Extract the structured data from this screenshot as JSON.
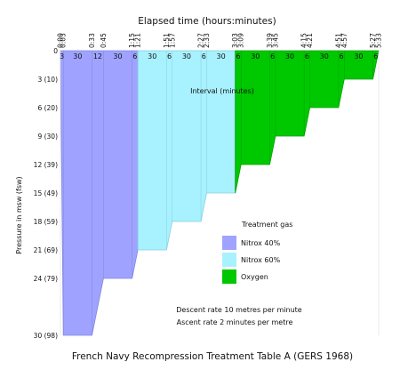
{
  "chart_data": {
    "type": "area",
    "title": "French Navy Recompression Treatment Table A (GERS 1968)",
    "xlabel": "Elapsed time (hours:minutes)",
    "ylabel": "Pressure in msw (fsw)",
    "x_unit": "minutes",
    "xlim": [
      0,
      333
    ],
    "ylim": [
      0,
      30
    ],
    "y_inverted": true,
    "x_ticks": [
      {
        "value": 0,
        "label": "0:00"
      },
      {
        "value": 3,
        "label": "0:03"
      },
      {
        "value": 33,
        "label": "0:33"
      },
      {
        "value": 45,
        "label": "0:45"
      },
      {
        "value": 75,
        "label": "1:15"
      },
      {
        "value": 81,
        "label": "1:21"
      },
      {
        "value": 111,
        "label": "1:51"
      },
      {
        "value": 117,
        "label": "1:57"
      },
      {
        "value": 147,
        "label": "2:27"
      },
      {
        "value": 153,
        "label": "2:33"
      },
      {
        "value": 183,
        "label": "3:03"
      },
      {
        "value": 189,
        "label": "3:09"
      },
      {
        "value": 219,
        "label": "3:39"
      },
      {
        "value": 225,
        "label": "3:45"
      },
      {
        "value": 255,
        "label": "4:15"
      },
      {
        "value": 261,
        "label": "4:21"
      },
      {
        "value": 291,
        "label": "4:51"
      },
      {
        "value": 297,
        "label": "4:57"
      },
      {
        "value": 327,
        "label": "5:27"
      },
      {
        "value": 333,
        "label": "5:33"
      }
    ],
    "y_ticks": [
      {
        "value": 0,
        "label": "0"
      },
      {
        "value": 3,
        "label": "3 (10)"
      },
      {
        "value": 6,
        "label": "6 (20)"
      },
      {
        "value": 9,
        "label": "9 (30)"
      },
      {
        "value": 12,
        "label": "12 (39)"
      },
      {
        "value": 15,
        "label": "15 (49)"
      },
      {
        "value": 18,
        "label": "18 (59)"
      },
      {
        "value": 21,
        "label": "21 (69)"
      },
      {
        "value": 24,
        "label": "24 (79)"
      },
      {
        "value": 30,
        "label": "30 (98)"
      }
    ],
    "duration_labels": [
      {
        "x": 1.5,
        "label": "3"
      },
      {
        "x": 18,
        "label": "30"
      },
      {
        "x": 39,
        "label": "12"
      },
      {
        "x": 60,
        "label": "30"
      },
      {
        "x": 78,
        "label": "6"
      },
      {
        "x": 96,
        "label": "30"
      },
      {
        "x": 114,
        "label": "6"
      },
      {
        "x": 132,
        "label": "30"
      },
      {
        "x": 150,
        "label": "6"
      },
      {
        "x": 168,
        "label": "30"
      },
      {
        "x": 186,
        "label": "6"
      },
      {
        "x": 204,
        "label": "30"
      },
      {
        "x": 222,
        "label": "6"
      },
      {
        "x": 240,
        "label": "30"
      },
      {
        "x": 258,
        "label": "6"
      },
      {
        "x": 276,
        "label": "30"
      },
      {
        "x": 294,
        "label": "6"
      },
      {
        "x": 312,
        "label": "30"
      },
      {
        "x": 330,
        "label": "6"
      }
    ],
    "profile": [
      [
        0,
        0
      ],
      [
        3,
        30
      ],
      [
        33,
        30
      ],
      [
        45,
        24
      ],
      [
        75,
        24
      ],
      [
        81,
        21
      ],
      [
        111,
        21
      ],
      [
        117,
        18
      ],
      [
        147,
        18
      ],
      [
        153,
        15
      ],
      [
        183,
        15
      ],
      [
        189,
        12
      ],
      [
        219,
        12
      ],
      [
        225,
        9
      ],
      [
        255,
        9
      ],
      [
        261,
        6
      ],
      [
        291,
        6
      ],
      [
        297,
        3
      ],
      [
        327,
        3
      ],
      [
        333,
        0
      ]
    ],
    "segments": [
      {
        "gas": "Nitrox 40%",
        "x_start": 0,
        "x_end": 81
      },
      {
        "gas": "Nitrox 60%",
        "x_start": 81,
        "x_end": 183
      },
      {
        "gas": "Oxygen",
        "x_start": 183,
        "x_end": 333
      }
    ],
    "legend": {
      "title": "Treatment gas",
      "placement": "right",
      "items": [
        {
          "label": "Nitrox 40%",
          "color": "#9fa3ff"
        },
        {
          "label": "Nitrox 60%",
          "color": "#a8f1ff"
        },
        {
          "label": "Oxygen",
          "color": "#00c800"
        }
      ]
    },
    "annotations": {
      "interval_label": "Interval (minutes)",
      "descent_note": "Descent rate 10 metres per minute",
      "ascent_note": "Ascent rate 2 minutes per metre"
    },
    "colors": {
      "nitrox40_fill": "#9fa3ff",
      "nitrox40_line": "#8285e0",
      "nitrox60_fill": "#a8f1ff",
      "nitrox60_line": "#86d0e0",
      "oxygen_fill": "#00c800",
      "oxygen_line": "#00a000"
    }
  }
}
